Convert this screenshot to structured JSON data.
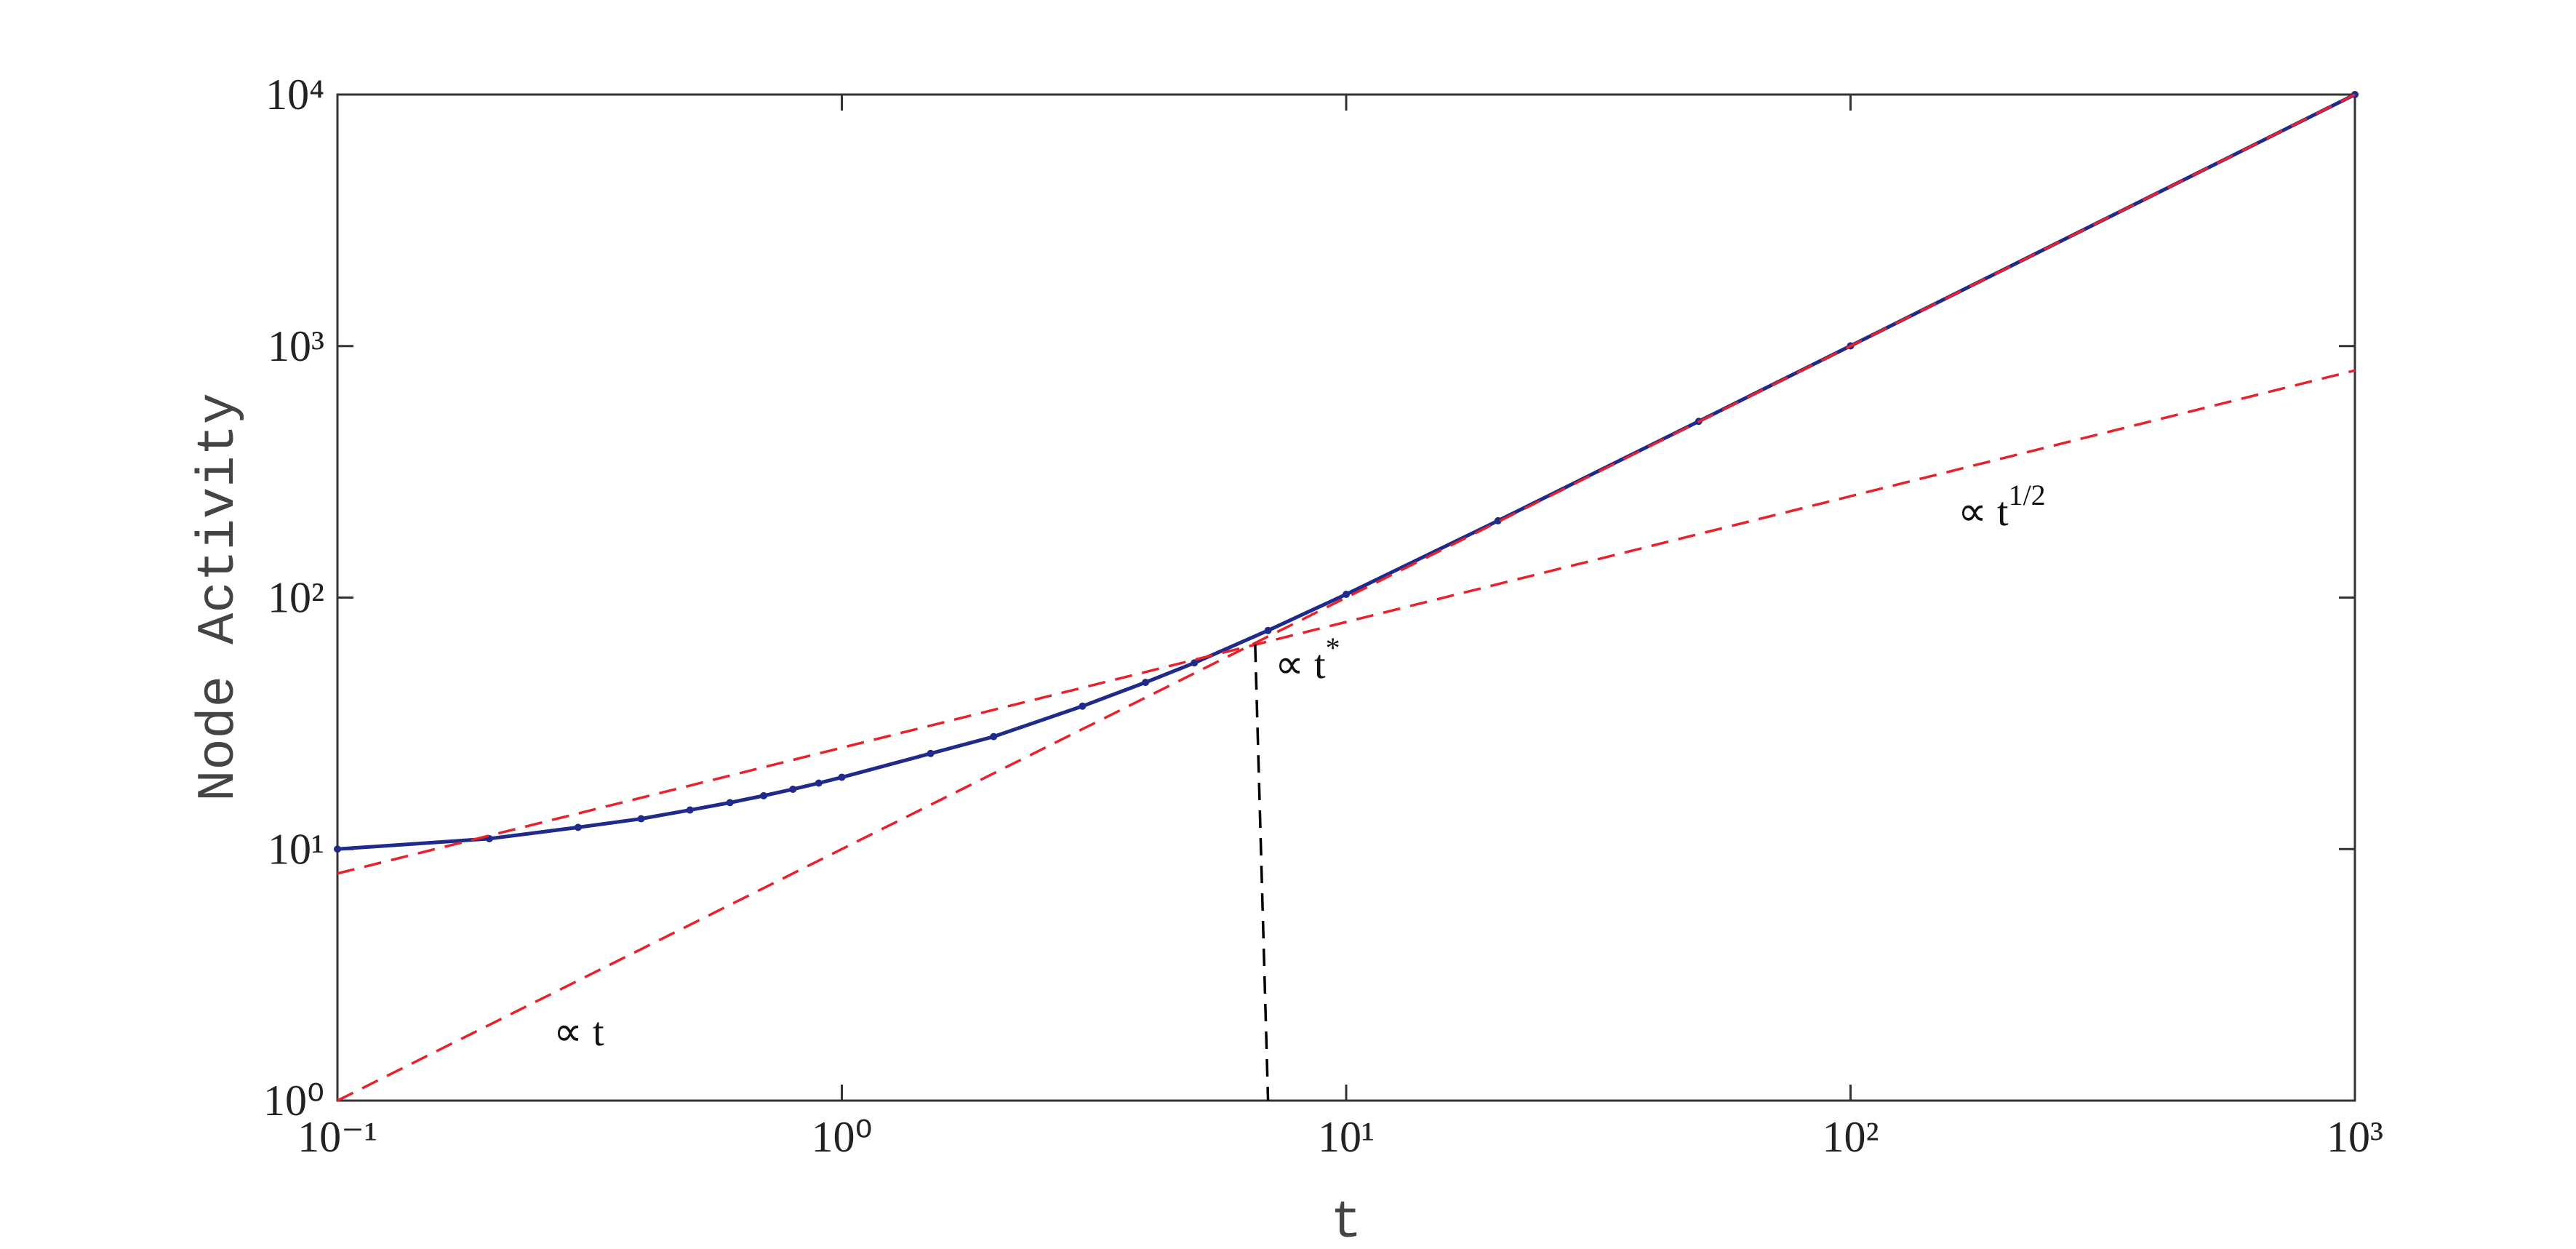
{
  "chart_data": {
    "type": "line",
    "x_label": "t",
    "y_label": "Node Activity",
    "xscale": "log",
    "yscale": "log",
    "xlim": [
      0.1,
      1000
    ],
    "ylim": [
      1,
      10000
    ],
    "xticks": [
      {
        "value": 0.1,
        "label": "10⁻¹"
      },
      {
        "value": 1,
        "label": "10⁰"
      },
      {
        "value": 10,
        "label": "10¹"
      },
      {
        "value": 100,
        "label": "10²"
      },
      {
        "value": 1000,
        "label": "10³"
      }
    ],
    "yticks": [
      {
        "value": 1,
        "label": "10⁰"
      },
      {
        "value": 10,
        "label": "10¹"
      },
      {
        "value": 100,
        "label": "10²"
      },
      {
        "value": 1000,
        "label": "10³"
      },
      {
        "value": 10000,
        "label": "10⁴"
      }
    ],
    "series": [
      {
        "color": "#1f2a8a",
        "dash": false,
        "markers": true,
        "x": [
          0.1,
          0.2,
          0.3,
          0.4,
          0.5,
          0.6,
          0.7,
          0.8,
          0.9,
          1,
          1.5,
          2,
          3,
          4,
          5,
          7,
          10,
          20,
          50,
          100,
          1000
        ],
        "values": [
          10,
          11,
          12.2,
          13.2,
          14.3,
          15.3,
          16.3,
          17.3,
          18.3,
          19.3,
          24,
          28,
          37,
          46,
          55,
          74,
          103,
          202,
          502,
          1002,
          10000
        ]
      },
      {
        "color": "#e8212b",
        "dash": true,
        "markers": false,
        "x": [
          0.1,
          1000
        ],
        "values": [
          1,
          10000
        ]
      },
      {
        "color": "#e8212b",
        "dash": true,
        "markers": false,
        "x": [
          0.1,
          1000
        ],
        "values": [
          8,
          800
        ]
      },
      {
        "color": "#000000",
        "dash": true,
        "markers": false,
        "x": [
          6.6,
          7
        ],
        "values": [
          65,
          1
        ]
      }
    ],
    "annotations": [
      {
        "text": "∝ t",
        "sup": ""
      },
      {
        "text": "∝ t",
        "sup": "1/2"
      },
      {
        "text": "∝ t",
        "sup": "*"
      }
    ]
  }
}
